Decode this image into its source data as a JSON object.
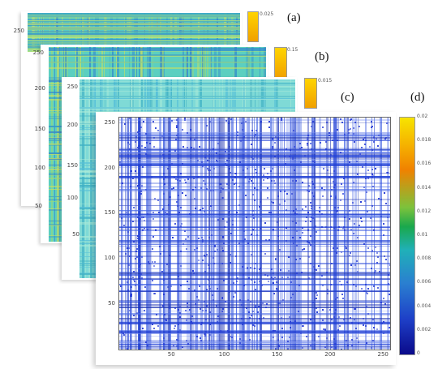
{
  "chart_data": [
    {
      "type": "heatmap",
      "label": "(a)",
      "palette": "yellow-green-cyan",
      "y_ticks": [
        "250",
        "200",
        "150",
        "100",
        "50"
      ],
      "colorbar_ticks": [
        "0.025",
        ""
      ],
      "title": "",
      "xlabel": "",
      "ylabel": ""
    },
    {
      "type": "heatmap",
      "label": "(b)",
      "palette": "yellow-green-cyan",
      "y_ticks": [
        "250",
        "200",
        "150",
        "100",
        "50"
      ],
      "colorbar_ticks": [
        "0.15",
        ""
      ],
      "title": "",
      "xlabel": "",
      "ylabel": ""
    },
    {
      "type": "heatmap",
      "label": "(c)",
      "palette": "cyan-teal",
      "y_ticks": [
        "250",
        "200",
        "150",
        "100",
        "50"
      ],
      "colorbar_ticks": [
        "0.015",
        ""
      ],
      "title": "",
      "xlabel": "",
      "ylabel": ""
    },
    {
      "type": "heatmap",
      "label": "(d)",
      "palette": "jet",
      "matrix_size": 256,
      "x_ticks": [
        "50",
        "100",
        "150",
        "200",
        "250"
      ],
      "y_ticks": [
        "250",
        "200",
        "150",
        "100",
        "50"
      ],
      "xlim": [
        0,
        256
      ],
      "ylim": [
        0,
        256
      ],
      "colorbar_ticks": [
        "0.02",
        "0.018",
        "0.016",
        "0.014",
        "0.012",
        "0.01",
        "0.008",
        "0.006",
        "0.004",
        "0.002",
        "0"
      ],
      "colorbar_range": [
        0,
        0.02
      ],
      "dominant_color": "#2a3fd6",
      "background_color": "#ffffff",
      "grid": false,
      "title": "",
      "xlabel": "",
      "ylabel": ""
    }
  ]
}
